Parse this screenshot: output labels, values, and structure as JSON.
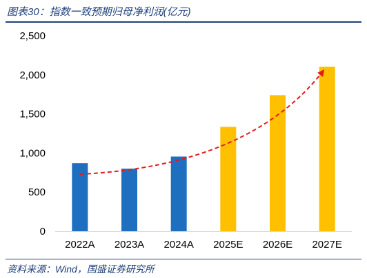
{
  "header": {
    "title": "图表30：指数一致预期归母净利润(亿元)"
  },
  "footer": {
    "source": "资料来源：Wind，国盛证券研究所"
  },
  "colors": {
    "actual": "#1f6fc1",
    "forecast": "#ffc000",
    "trend": "#e31a1c",
    "text_accent": "#1e3f7a"
  },
  "chart_data": {
    "type": "bar",
    "title": "图表30：指数一致预期归母净利润(亿元)",
    "xlabel": "",
    "ylabel": "",
    "categories": [
      "2022A",
      "2023A",
      "2024A",
      "2025E",
      "2026E",
      "2027E"
    ],
    "values": [
      870,
      800,
      955,
      1335,
      1740,
      2105
    ],
    "bar_colors": [
      "#1f6fc1",
      "#1f6fc1",
      "#1f6fc1",
      "#ffc000",
      "#ffc000",
      "#ffc000"
    ],
    "ylim": [
      0,
      2500
    ],
    "yticks": [
      0,
      500,
      1000,
      1500,
      2000,
      2500
    ],
    "ytick_labels": [
      "0",
      "500",
      "1,000",
      "1,500",
      "2,000",
      "2,500"
    ],
    "grid": false,
    "legend": "none",
    "annotations": [
      {
        "type": "dashed-arrow",
        "description": "upward trend curve from 2022A to 2027E",
        "color": "#e31a1c"
      }
    ]
  }
}
